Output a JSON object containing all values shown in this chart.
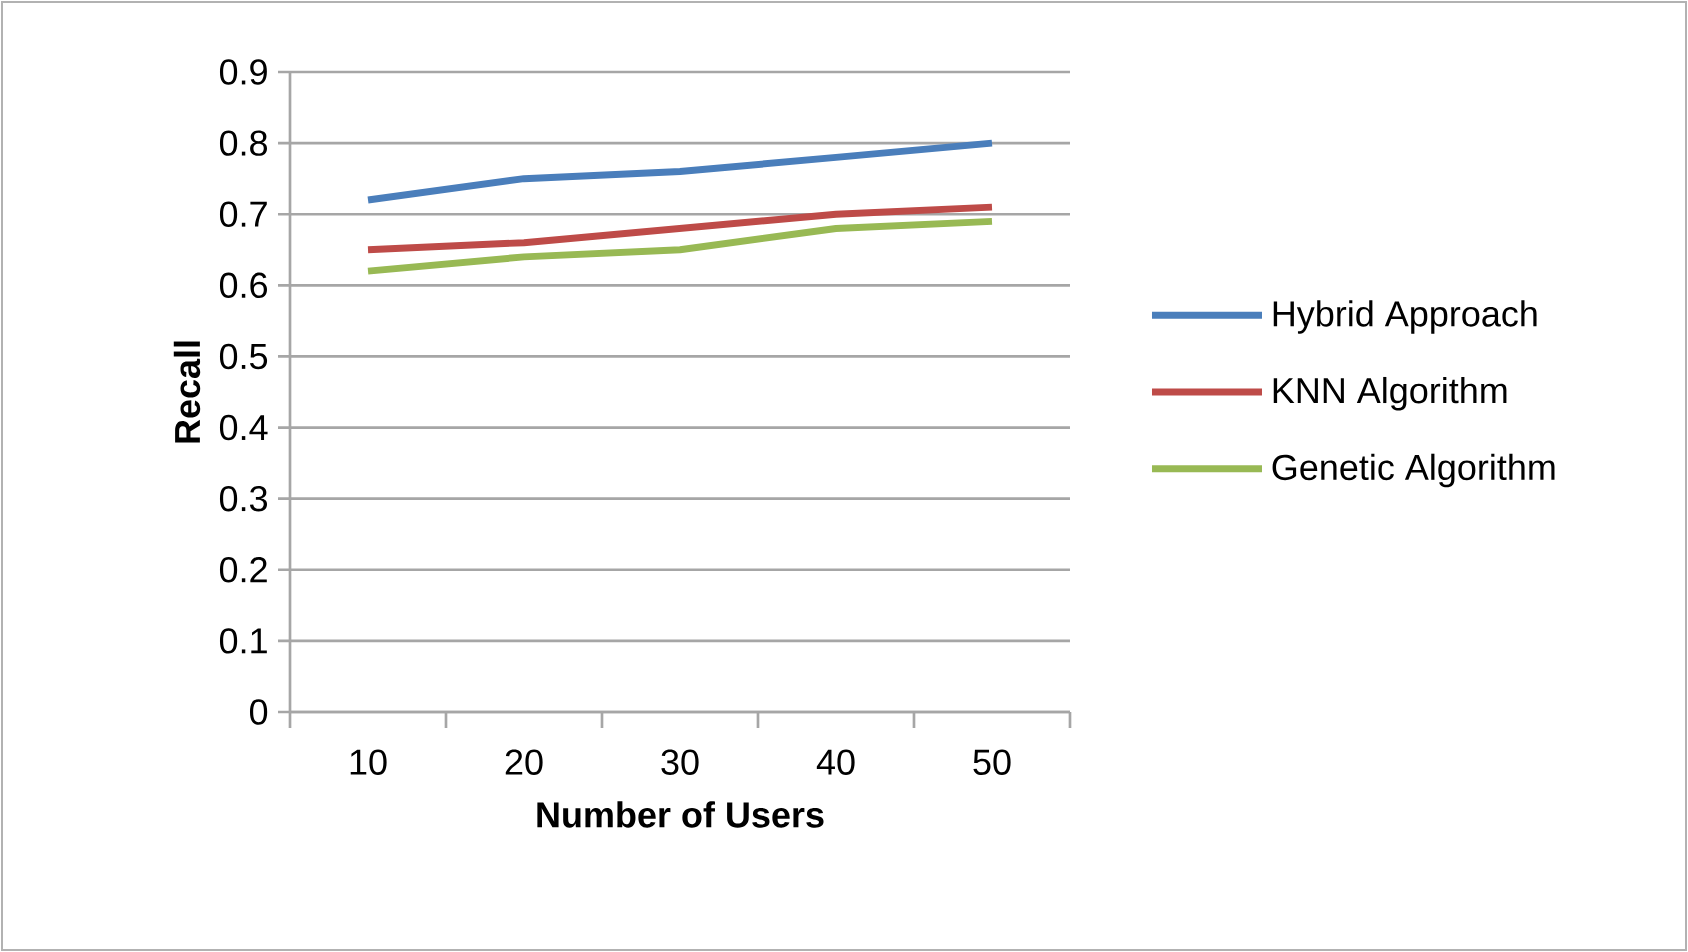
{
  "chart_data": {
    "type": "line",
    "xlabel": "Number of Users",
    "ylabel": "Recall",
    "categories": [
      "10",
      "20",
      "30",
      "40",
      "50"
    ],
    "series": [
      {
        "name": "Hybrid Approach",
        "color": "#4a7ebb",
        "values": [
          0.72,
          0.75,
          0.76,
          0.78,
          0.8
        ]
      },
      {
        "name": "KNN Algorithm",
        "color": "#be4b48",
        "values": [
          0.65,
          0.66,
          0.68,
          0.7,
          0.71
        ]
      },
      {
        "name": "Genetic Algorithm",
        "color": "#98b954",
        "values": [
          0.62,
          0.64,
          0.65,
          0.68,
          0.69
        ]
      }
    ],
    "ylim": [
      0,
      0.9
    ],
    "yticks": [
      0,
      0.1,
      0.2,
      0.3,
      0.4,
      0.5,
      0.6,
      0.7,
      0.8,
      0.9
    ],
    "grid": "y",
    "legend": "right",
    "marker": "none",
    "line_style": "solid"
  }
}
